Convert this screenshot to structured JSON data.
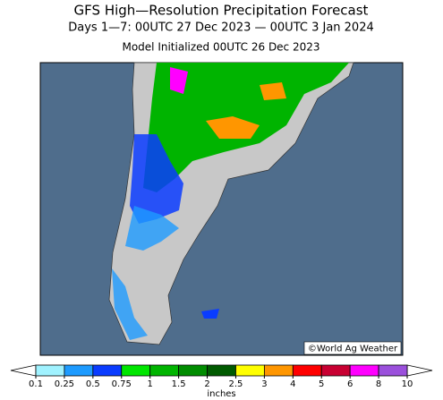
{
  "header": {
    "title": "GFS High—Resolution Precipitation Forecast",
    "subtitle": "Days 1—7: 00UTC 27 Dec 2023 — 00UTC 3 Jan 2024",
    "initialized": "Model Initialized 00UTC 26 Dec 2023"
  },
  "map": {
    "credit": "©World Ag Weather"
  },
  "legend": {
    "ticks": [
      0.1,
      0.25,
      0.5,
      0.75,
      1,
      1.5,
      2,
      2.5,
      3,
      4,
      5,
      6,
      8,
      10
    ],
    "colors": [
      "#a0f2ff",
      "#1e9bff",
      "#0a3cff",
      "#00e600",
      "#00b400",
      "#008c00",
      "#005a00",
      "#ffff00",
      "#ff9600",
      "#ff0000",
      "#c80032",
      "#ff00ff",
      "#9b50dc"
    ],
    "unit": "inches"
  }
}
